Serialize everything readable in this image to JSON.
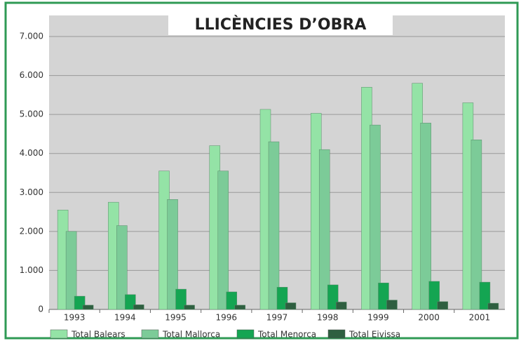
{
  "chart_data": {
    "type": "bar",
    "title": "LLICÈNCIES D’OBRA",
    "categories": [
      "1993",
      "1994",
      "1995",
      "1996",
      "1997",
      "1998",
      "1999",
      "2000",
      "2001"
    ],
    "series": [
      {
        "name": "Total Balears",
        "color": "#94e3a6",
        "values": [
          2550,
          2750,
          3550,
          4200,
          5130,
          5030,
          5700,
          5800,
          5300
        ]
      },
      {
        "name": "Total Mallorca",
        "color": "#7ccb98",
        "values": [
          2000,
          2150,
          2820,
          3550,
          4300,
          4100,
          4730,
          4780,
          4350
        ]
      },
      {
        "name": "Total Menorca",
        "color": "#14a552",
        "values": [
          340,
          380,
          520,
          450,
          570,
          630,
          680,
          720,
          700
        ]
      },
      {
        "name": "Total Eivissa",
        "color": "#2e5f40",
        "values": [
          110,
          120,
          110,
          110,
          170,
          190,
          240,
          200,
          160
        ]
      }
    ],
    "ylim": [
      0,
      7000
    ],
    "yticks": [
      0,
      {
        "value": 1000,
        "label": "1.000"
      },
      {
        "value": 2000,
        "label": "2.000"
      },
      {
        "value": 3000,
        "label": "3.000"
      },
      {
        "value": 4000,
        "label": "4.000"
      },
      {
        "value": 5000,
        "label": "5.000"
      },
      {
        "value": 6000,
        "label": "6.000"
      },
      {
        "value": 7000,
        "label": "7.000"
      }
    ],
    "grid": true,
    "legend": "bottom"
  }
}
